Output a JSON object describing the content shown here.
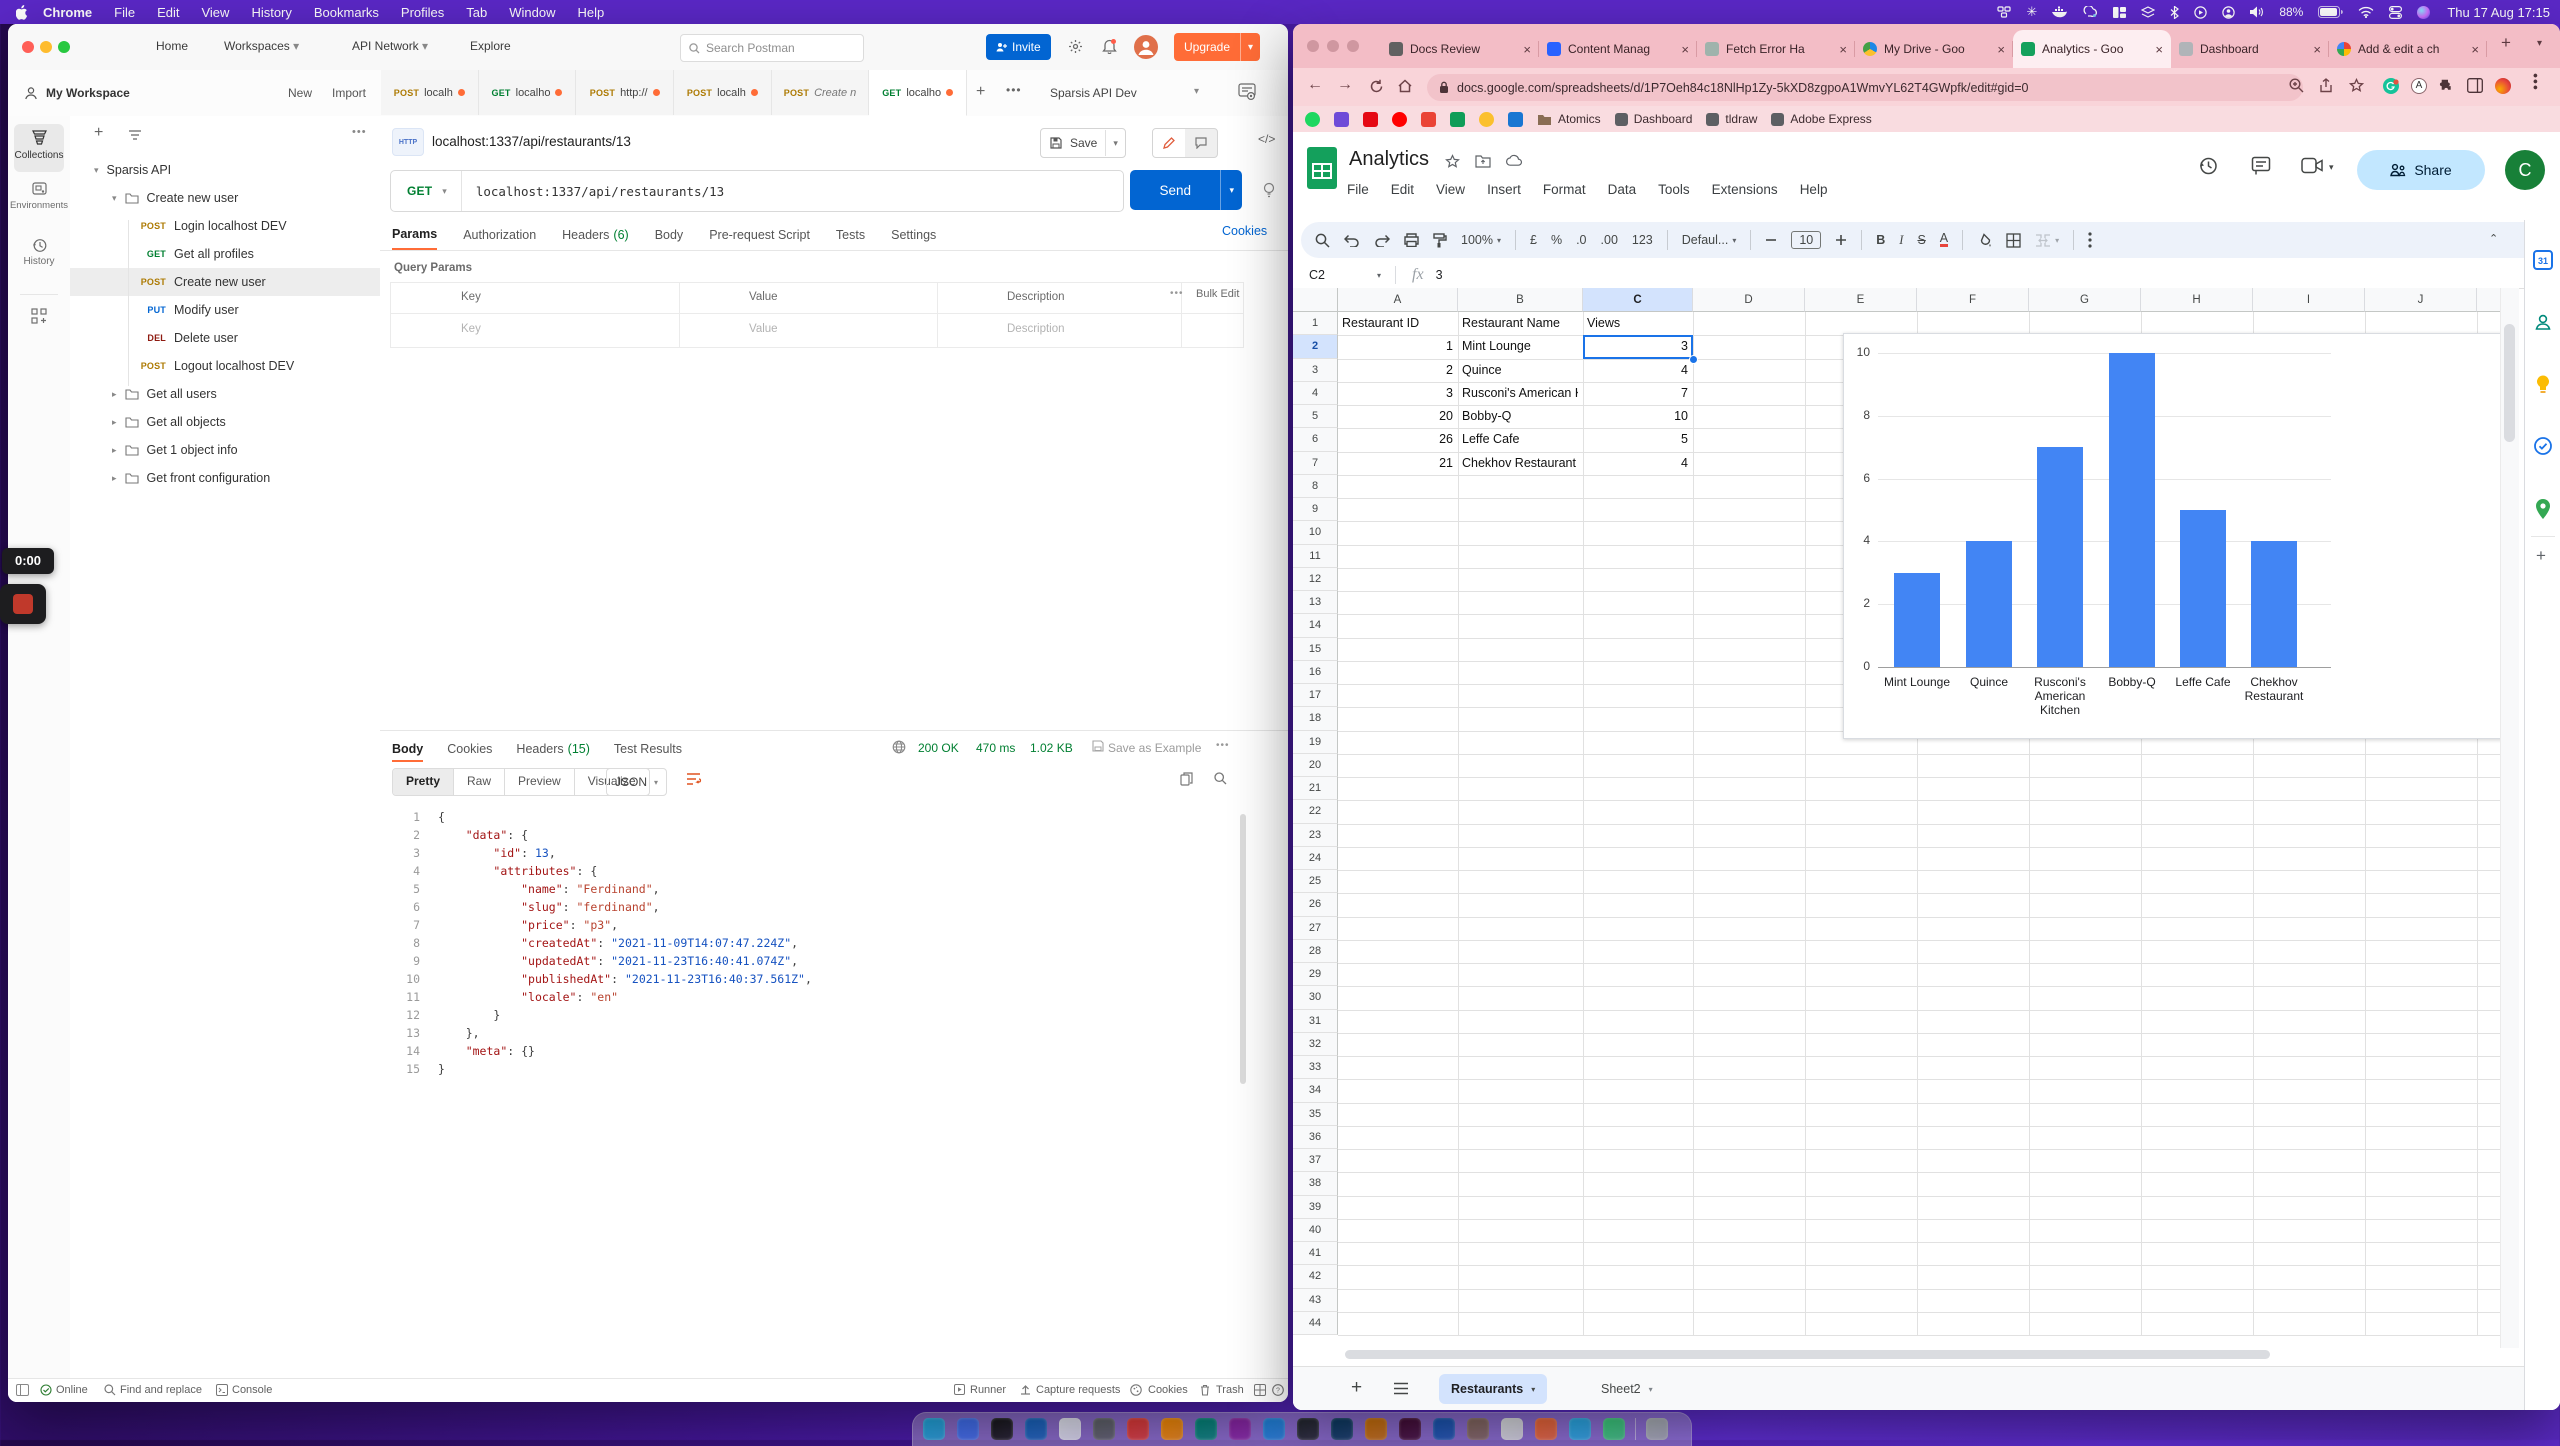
{
  "menubar": {
    "items": [
      "Chrome",
      "File",
      "Edit",
      "View",
      "History",
      "Bookmarks",
      "Profiles",
      "Tab",
      "Window",
      "Help"
    ],
    "battery": "88%",
    "clock": "Thu 17 Aug 17:15"
  },
  "recorder": {
    "time": "0:00"
  },
  "postman": {
    "topnav": [
      "Home",
      "Workspaces",
      "API Network",
      "Explore"
    ],
    "search_placeholder": "Search Postman",
    "invite_label": "Invite",
    "upgrade_label": "Upgrade",
    "workspace": {
      "title": "My Workspace",
      "new_label": "New",
      "import_label": "Import"
    },
    "rail": [
      "Collections",
      "Environments",
      "History"
    ],
    "tree": [
      {
        "label": "Sparsis API",
        "kind": "collection",
        "chevron": "open",
        "indent": 0
      },
      {
        "label": "Create new user",
        "kind": "folder",
        "chevron": "open",
        "indent": 1
      },
      {
        "label": "Login localhost DEV",
        "method": "POST",
        "indent": 2
      },
      {
        "label": "Get all profiles",
        "method": "GET",
        "indent": 2
      },
      {
        "label": "Create new user",
        "method": "POST",
        "indent": 2,
        "selected": true
      },
      {
        "label": "Modify user",
        "method": "PUT",
        "indent": 2
      },
      {
        "label": "Delete user",
        "method": "DEL",
        "indent": 2
      },
      {
        "label": "Logout localhost DEV",
        "method": "POST",
        "indent": 2
      },
      {
        "label": "Get all users",
        "kind": "folder",
        "chevron": "closed",
        "indent": 1
      },
      {
        "label": "Get all objects",
        "kind": "folder",
        "chevron": "closed",
        "indent": 1
      },
      {
        "label": "Get 1 object info",
        "kind": "folder",
        "chevron": "closed",
        "indent": 1
      },
      {
        "label": "Get front configuration",
        "kind": "folder",
        "chevron": "closed",
        "indent": 1
      }
    ],
    "tabs": [
      {
        "method": "POST",
        "label": "localh",
        "dot": true
      },
      {
        "method": "GET",
        "label": "localho",
        "dot": true
      },
      {
        "method": "POST",
        "label": "http://",
        "dot": true
      },
      {
        "method": "POST",
        "label": "localh",
        "dot": true
      },
      {
        "method": "POST",
        "label": "Create n",
        "italic": true
      },
      {
        "method": "GET",
        "label": "localho",
        "dot": true,
        "active": true
      }
    ],
    "environment": "Sparsis API Dev",
    "request": {
      "title": "localhost:1337/api/restaurants/13",
      "method": "GET",
      "url": "localhost:1337/api/restaurants/13",
      "save_label": "Save",
      "send_label": "Send",
      "tabs": [
        {
          "label": "Params",
          "active": true
        },
        {
          "label": "Authorization"
        },
        {
          "label": "Headers",
          "count": "(6)"
        },
        {
          "label": "Body"
        },
        {
          "label": "Pre-request Script"
        },
        {
          "label": "Tests"
        },
        {
          "label": "Settings"
        }
      ],
      "cookies_link": "Cookies",
      "query_params_label": "Query Params",
      "param_headers": [
        "Key",
        "Value",
        "Description"
      ],
      "bulk_edit_label": "Bulk Edit",
      "ghost_row": [
        "Key",
        "Value",
        "Description"
      ]
    },
    "response": {
      "tabs": [
        {
          "label": "Body",
          "active": true
        },
        {
          "label": "Cookies"
        },
        {
          "label": "Headers",
          "count": "(15)"
        },
        {
          "label": "Test Results"
        }
      ],
      "status": "200 OK",
      "time": "470 ms",
      "size": "1.02 KB",
      "save_as_example": "Save as Example",
      "modes": [
        "Pretty",
        "Raw",
        "Preview",
        "Visualize"
      ],
      "active_mode": "Pretty",
      "format": "JSON",
      "code": [
        [
          [
            "{",
            "p"
          ]
        ],
        [
          [
            "    ",
            ""
          ],
          [
            "\"data\"",
            "k"
          ],
          [
            ": {",
            "p"
          ]
        ],
        [
          [
            "        ",
            ""
          ],
          [
            "\"id\"",
            "k"
          ],
          [
            ": ",
            "p"
          ],
          [
            "13",
            "d"
          ],
          [
            ",",
            "p"
          ]
        ],
        [
          [
            "        ",
            ""
          ],
          [
            "\"attributes\"",
            "k"
          ],
          [
            ": {",
            "p"
          ]
        ],
        [
          [
            "            ",
            ""
          ],
          [
            "\"name\"",
            "k"
          ],
          [
            ": ",
            "p"
          ],
          [
            "\"Ferdinand\"",
            "s"
          ],
          [
            ",",
            "p"
          ]
        ],
        [
          [
            "            ",
            ""
          ],
          [
            "\"slug\"",
            "k"
          ],
          [
            ": ",
            "p"
          ],
          [
            "\"ferdinand\"",
            "s"
          ],
          [
            ",",
            "p"
          ]
        ],
        [
          [
            "            ",
            ""
          ],
          [
            "\"price\"",
            "k"
          ],
          [
            ": ",
            "p"
          ],
          [
            "\"p3\"",
            "s"
          ],
          [
            ",",
            "p"
          ]
        ],
        [
          [
            "            ",
            ""
          ],
          [
            "\"createdAt\"",
            "k"
          ],
          [
            ": ",
            "p"
          ],
          [
            "\"2021-11-09T14:07:47.224Z\"",
            "d"
          ],
          [
            ",",
            "p"
          ]
        ],
        [
          [
            "            ",
            ""
          ],
          [
            "\"updatedAt\"",
            "k"
          ],
          [
            ": ",
            "p"
          ],
          [
            "\"2021-11-23T16:40:41.074Z\"",
            "d"
          ],
          [
            ",",
            "p"
          ]
        ],
        [
          [
            "            ",
            ""
          ],
          [
            "\"publishedAt\"",
            "k"
          ],
          [
            ": ",
            "p"
          ],
          [
            "\"2021-11-23T16:40:37.561Z\"",
            "d"
          ],
          [
            ",",
            "p"
          ]
        ],
        [
          [
            "            ",
            ""
          ],
          [
            "\"locale\"",
            "k"
          ],
          [
            ": ",
            "p"
          ],
          [
            "\"en\"",
            "s"
          ]
        ],
        [
          [
            "        }",
            "p"
          ]
        ],
        [
          [
            "    },",
            "p"
          ]
        ],
        [
          [
            "    ",
            ""
          ],
          [
            "\"meta\"",
            "k"
          ],
          [
            ": {}",
            "p"
          ]
        ],
        [
          [
            "}",
            "p"
          ]
        ]
      ]
    },
    "footer": {
      "online": "Online",
      "find": "Find and replace",
      "console": "Console",
      "runner": "Runner",
      "capture": "Capture requests",
      "cookies": "Cookies",
      "trash": "Trash"
    }
  },
  "chrome": {
    "tabs": [
      {
        "title": "Docs Review",
        "icon": "#616161"
      },
      {
        "title": "Content Manag",
        "icon": "#2962ff"
      },
      {
        "title": "Fetch Error Ha",
        "icon": "#9fb3ac"
      },
      {
        "title": "My Drive - Goo",
        "icon": "drive"
      },
      {
        "title": "Analytics - Goo",
        "icon": "sheets",
        "active": true
      },
      {
        "title": "Dashboard",
        "icon": "#b0b4b8"
      },
      {
        "title": "Add & edit a ch",
        "icon": "google"
      }
    ],
    "url": "docs.google.com/spreadsheets/d/1P7Oeh84c18NlHp1Zy-5kXD8zgpoA1WmvYL62T4GWpfk/edit#gid=0",
    "bookmarks": [
      {
        "label": "Atomics",
        "kind": "folder"
      },
      {
        "label": "Dashboard",
        "kind": "site"
      },
      {
        "label": "tldraw",
        "kind": "site"
      },
      {
        "label": "Adobe Express",
        "kind": "site"
      }
    ]
  },
  "sheets": {
    "title": "Analytics",
    "menus": [
      "File",
      "Edit",
      "View",
      "Insert",
      "Format",
      "Data",
      "Tools",
      "Extensions",
      "Help"
    ],
    "share_label": "Share",
    "avatar_initial": "C",
    "fx_label": "fx",
    "name_box": "C2",
    "formula_value": "3",
    "toolbar_items": [
      {
        "icon": "search",
        "name": "search"
      },
      {
        "icon": "undo",
        "name": "undo"
      },
      {
        "icon": "redo",
        "name": "redo"
      },
      {
        "icon": "print",
        "name": "print"
      },
      {
        "icon": "paint",
        "name": "paint-format"
      },
      {
        "label": "100%",
        "dd": true,
        "name": "zoom-select"
      },
      {
        "sep": true
      },
      {
        "label": "£",
        "name": "format-currency"
      },
      {
        "label": "%",
        "name": "format-percent"
      },
      {
        "label": ".0",
        "name": "decrease-decimals"
      },
      {
        "label": ".00",
        "name": "increase-decimals"
      },
      {
        "label": "123",
        "name": "number-format"
      },
      {
        "sep": true
      },
      {
        "label": "Defaul...",
        "dd": true,
        "name": "font-select"
      },
      {
        "sep": true
      },
      {
        "icon": "minus",
        "name": "font-size-decrease"
      },
      {
        "label": "10",
        "box": true,
        "name": "font-size"
      },
      {
        "icon": "plus",
        "name": "font-size-increase"
      },
      {
        "sep": true
      },
      {
        "label": "B",
        "style": "b",
        "name": "bold"
      },
      {
        "label": "I",
        "style": "i",
        "name": "italic"
      },
      {
        "label": "S",
        "style": "s",
        "name": "strikethrough"
      },
      {
        "label": "A",
        "style": "u",
        "name": "text-color"
      },
      {
        "sep": true
      },
      {
        "icon": "fill",
        "name": "fill-color"
      },
      {
        "icon": "borders",
        "name": "borders"
      },
      {
        "icon": "merge",
        "dd": true,
        "muted": true,
        "name": "merge-cells"
      },
      {
        "sep": true
      },
      {
        "icon": "more",
        "name": "more-toolbar"
      }
    ],
    "columns": [
      "A",
      "B",
      "C",
      "D",
      "E",
      "F",
      "G",
      "H",
      "I",
      "J"
    ],
    "selected_column": "C",
    "selected_row": 2,
    "visible_rows": 44,
    "table": {
      "headers": [
        "Restaurant ID",
        "Restaurant Name",
        "Views"
      ],
      "rows": [
        [
          "1",
          "Mint Lounge",
          "3"
        ],
        [
          "2",
          "Quince",
          "4"
        ],
        [
          "3",
          "Rusconi's American Kitc",
          "7"
        ],
        [
          "20",
          "Bobby-Q",
          "10"
        ],
        [
          "26",
          "Leffe Cafe",
          "5"
        ],
        [
          "21",
          "Chekhov Restaurant",
          "4"
        ]
      ]
    },
    "sheet_tabs": [
      {
        "label": "Restaurants",
        "active": true
      },
      {
        "label": "Sheet2"
      }
    ]
  },
  "chart_data": {
    "type": "bar",
    "categories": [
      "Mint Lounge",
      "Quince",
      "Rusconi's American Kitchen",
      "Bobby-Q",
      "Leffe Cafe",
      "Chekhov Restaurant"
    ],
    "values": [
      3,
      4,
      7,
      10,
      5,
      4
    ],
    "title": "",
    "xlabel": "",
    "ylabel": "",
    "ylim": [
      0,
      10
    ],
    "yticks": [
      0,
      2,
      4,
      6,
      8,
      10
    ],
    "bar_color": "#4285f4",
    "grid": true,
    "legend": "none"
  },
  "dock": {
    "apps": [
      {
        "name": "dock-app-1",
        "color": "#1ea8e0"
      },
      {
        "name": "dock-app-2",
        "color": "#3d6ff2"
      },
      {
        "name": "dock-app-3",
        "color": "#17171a"
      },
      {
        "name": "dock-app-4",
        "color": "#1565c0"
      },
      {
        "name": "dock-app-5",
        "color": "#e8eaf6"
      },
      {
        "name": "dock-app-6",
        "color": "#5f6368"
      },
      {
        "name": "dock-app-7",
        "color": "#e53935"
      },
      {
        "name": "dock-app-8",
        "color": "#fb8c00"
      },
      {
        "name": "dock-app-9",
        "color": "#00897b"
      },
      {
        "name": "dock-app-10",
        "color": "#8e24aa"
      },
      {
        "name": "dock-app-11",
        "color": "#1e88e5"
      },
      {
        "name": "dock-app-12",
        "color": "#22272e"
      },
      {
        "name": "dock-app-13",
        "color": "#0b3d66"
      },
      {
        "name": "dock-app-14",
        "color": "#d97706"
      },
      {
        "name": "dock-app-15",
        "color": "#470b38"
      },
      {
        "name": "dock-app-16",
        "color": "#185abd"
      },
      {
        "name": "dock-app-17",
        "color": "#8d6e63"
      },
      {
        "name": "dock-app-18",
        "color": "#eceff1"
      },
      {
        "name": "dock-app-19",
        "color": "#ff6c37"
      },
      {
        "name": "dock-app-20",
        "color": "#29b6f6"
      },
      {
        "name": "dock-app-21",
        "color": "#3ddc84"
      },
      {
        "name": "dock-trash",
        "color": "#b7bec4"
      }
    ]
  }
}
